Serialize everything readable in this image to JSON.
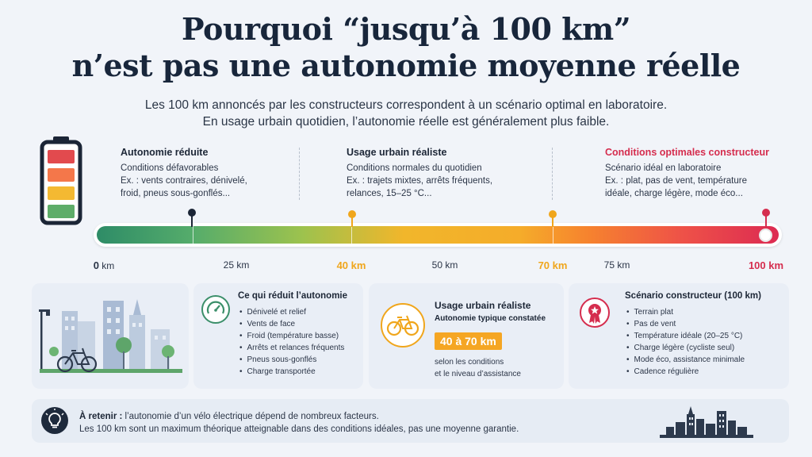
{
  "title_line1": "Pourquoi “jusqu’à 100 km”",
  "title_line2": "n’est pas une autonomie moyenne réelle",
  "subtitle_line1": "Les 100 km annoncés par les constructeurs correspondent à un scénario optimal en laboratoire.",
  "subtitle_line2": "En usage urbain quotidien, l’autonomie réelle est généralement plus faible.",
  "scenarios": [
    {
      "title": "Autonomie réduite",
      "line1": "Conditions défavorables",
      "line2": "Ex. : vents contraires, dénivelé,",
      "line3": "froid, pneus sous-gonflés..."
    },
    {
      "title": "Usage urbain réaliste",
      "line1": "Conditions normales du quotidien",
      "line2": "Ex. : trajets mixtes, arrêts fréquents,",
      "line3": "relances, 15–25 °C..."
    },
    {
      "title": "Conditions optimales constructeur",
      "line1": "Scénario idéal en laboratoire",
      "line2": "Ex. : plat, pas de vent, température",
      "line3": "idéale, charge légère, mode éco..."
    }
  ],
  "ticks": [
    {
      "num": "0",
      "unit": " km"
    },
    {
      "num": "25 km",
      "unit": ""
    },
    {
      "num": "40 km",
      "unit": ""
    },
    {
      "num": "50 km",
      "unit": ""
    },
    {
      "num": "70 km",
      "unit": ""
    },
    {
      "num": "75 km",
      "unit": ""
    },
    {
      "num": "100 km",
      "unit": ""
    }
  ],
  "colors": {
    "green": "#2e8c67",
    "orange": "#f0a61c",
    "red": "#d52d4e",
    "navy": "#18263b"
  },
  "card_reduce": {
    "title": "Ce qui réduit l’autonomie",
    "items": [
      "Dénivelé et relief",
      "Vents de face",
      "Froid (température basse)",
      "Arrêts et relances fréquents",
      "Pneus sous-gonflés",
      "Charge transportée"
    ],
    "icon": "gauge-icon"
  },
  "card_urban": {
    "title": "Usage urbain réaliste",
    "subtitle": "Autonomie typique constatée",
    "range": "40 à 70 km",
    "note1": "selon les conditions",
    "note2": "et le niveau d’assistance",
    "icon": "bicycle-icon"
  },
  "card_maker": {
    "title": "Scénario constructeur (100 km)",
    "items": [
      "Terrain plat",
      "Pas de vent",
      "Température idéale (20–25 °C)",
      "Charge légère (cycliste seul)",
      "Mode éco, assistance minimale",
      "Cadence régulière"
    ],
    "icon": "award-ribbon-icon"
  },
  "bottom": {
    "label": "À retenir :",
    "line1": " l’autonomie d’un vélo électrique dépend de nombreux facteurs.",
    "line2": "Les 100 km sont un maximum théorique atteignable dans des conditions idéales, pas une moyenne garantie.",
    "icon": "lightbulb-icon"
  }
}
